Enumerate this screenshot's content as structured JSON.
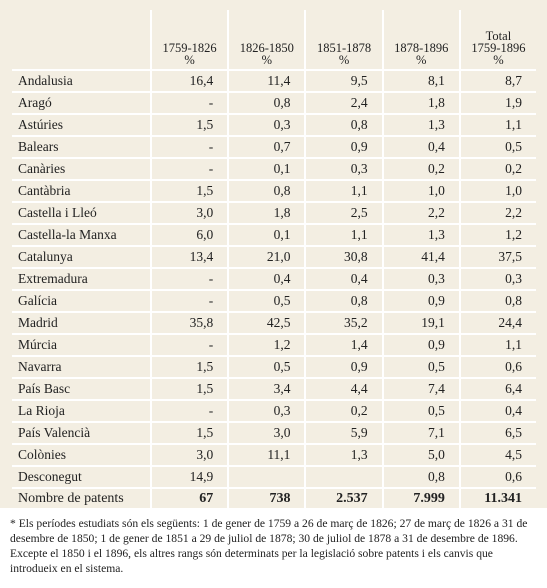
{
  "table": {
    "header": [
      [
        "1759-1826",
        "%"
      ],
      [
        "1826-1850",
        "%"
      ],
      [
        "1851-1878",
        "%"
      ],
      [
        "1878-1896",
        "%"
      ],
      [
        "Total",
        "1759-1896",
        "%"
      ]
    ],
    "rows": [
      [
        "Andalusia",
        "16,4",
        "11,4",
        "9,5",
        "8,1",
        "8,7"
      ],
      [
        "Aragó",
        "-",
        "0,8",
        "2,4",
        "1,8",
        "1,9"
      ],
      [
        "Astúries",
        "1,5",
        "0,3",
        "0,8",
        "1,3",
        "1,1"
      ],
      [
        "Balears",
        "-",
        "0,7",
        "0,9",
        "0,4",
        "0,5"
      ],
      [
        "Canàries",
        "-",
        "0,1",
        "0,3",
        "0,2",
        "0,2"
      ],
      [
        "Cantàbria",
        "1,5",
        "0,8",
        "1,1",
        "1,0",
        "1,0"
      ],
      [
        "Castella i Lleó",
        "3,0",
        "1,8",
        "2,5",
        "2,2",
        "2,2"
      ],
      [
        "Castella-la Manxa",
        "6,0",
        "0,1",
        "1,1",
        "1,3",
        "1,2"
      ],
      [
        "Catalunya",
        "13,4",
        "21,0",
        "30,8",
        "41,4",
        "37,5"
      ],
      [
        "Extremadura",
        "-",
        "0,4",
        "0,4",
        "0,3",
        "0,3"
      ],
      [
        "Galícia",
        "-",
        "0,5",
        "0,8",
        "0,9",
        "0,8"
      ],
      [
        "Madrid",
        "35,8",
        "42,5",
        "35,2",
        "19,1",
        "24,4"
      ],
      [
        "Múrcia",
        "-",
        "1,2",
        "1,4",
        "0,9",
        "1,1"
      ],
      [
        "Navarra",
        "1,5",
        "0,5",
        "0,9",
        "0,5",
        "0,6"
      ],
      [
        "País Basc",
        "1,5",
        "3,4",
        "4,4",
        "7,4",
        "6,4"
      ],
      [
        "La Rioja",
        "-",
        "0,3",
        "0,2",
        "0,5",
        "0,4"
      ],
      [
        "País Valencià",
        "1,5",
        "3,0",
        "5,9",
        "7,1",
        "6,5"
      ],
      [
        "Colònies",
        "3,0",
        "11,1",
        "1,3",
        "5,0",
        "4,5"
      ],
      [
        "Desconegut",
        "14,9",
        null,
        null,
        "0,8",
        "0,6"
      ]
    ],
    "total_row": [
      "Nombre de patents",
      "67",
      "738",
      "2.537",
      "7.999",
      "11.341"
    ]
  },
  "footnote": "* Els períodes estudiats són els següents: 1 de gener de 1759 a 26 de març de 1826; 27 de març de 1826 a 31 de desembre de 1850; 1 de gener de 1851 a 29 de juliol de 1878; 30 de juliol de 1878 a 31 de desembre de 1896. Excepte el 1850 i el 1896, els altres rangs són determinats per la legislació sobre patents i els canvis que introdueix en el sistema."
}
